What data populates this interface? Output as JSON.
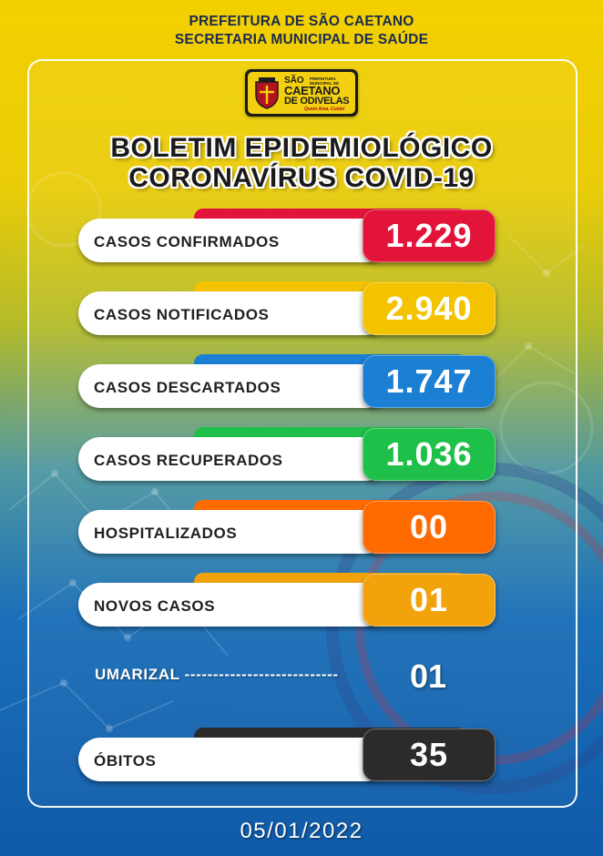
{
  "header": {
    "line1": "PREFEITURA DE SÃO CAETANO",
    "line2": "SECRETARIA MUNICIPAL DE SAÚDE"
  },
  "logo": {
    "small_text": "PREFEITURA MUNICIPAL DE",
    "line1": "SÃO",
    "line2": "CAETANO",
    "line3": "DE ODIVELAS",
    "slogan": "Quem Ama, Cuida!"
  },
  "title": {
    "line1": "BOLETIM EPIDEMIOLÓGICO",
    "line2": "CORONAVÍRUS COVID-19"
  },
  "stats": [
    {
      "label": "CASOS CONFIRMADOS",
      "value": "1.229",
      "color": "#e3143a",
      "tab": "#e3143a"
    },
    {
      "label": "CASOS NOTIFICADOS",
      "value": "2.940",
      "color": "#f3c300",
      "tab": "#f3c300"
    },
    {
      "label": "CASOS DESCARTADOS",
      "value": "1.747",
      "color": "#1b7fd3",
      "tab": "#1b7fd3"
    },
    {
      "label": "CASOS RECUPERADOS",
      "value": "1.036",
      "color": "#1fc04a",
      "tab": "#1fc04a"
    },
    {
      "label": "HOSPITALIZADOS",
      "value": "00",
      "color": "#ff6a00",
      "tab": "#ff6a00"
    },
    {
      "label": "NOVOS CASOS",
      "value": "01",
      "color": "#f2a30c",
      "tab": "#f2a30c"
    }
  ],
  "umarizal": {
    "label": "UMARIZAL ---------------------------",
    "value": "01"
  },
  "obitos": {
    "label": "ÓBITOS",
    "value": "35",
    "color": "#2b2b2b",
    "tab": "#2b2b2b"
  },
  "date": "05/01/2022",
  "colors": {
    "header_text": "#1c2a52",
    "background_top": "#f3d000",
    "background_bottom": "#0f5aa8"
  }
}
